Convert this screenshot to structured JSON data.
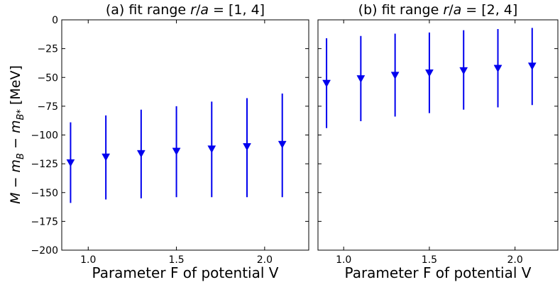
{
  "chart_data": [
    {
      "type": "scatter",
      "title": "(a) fit range r/a = [1, 4]",
      "xlabel": "Parameter F of potential V",
      "ylabel": "M − m_B − m_B* [MeV]",
      "xlim": [
        0.85,
        2.25
      ],
      "ylim": [
        -200,
        0
      ],
      "xticks": [
        1.0,
        1.5,
        2.0
      ],
      "xtick_labels": [
        "1.0",
        "1.5",
        "2.0"
      ],
      "yticks": [
        0,
        -25,
        -50,
        -75,
        -100,
        -125,
        -150,
        -175,
        -200
      ],
      "ytick_labels": [
        "0",
        "−25",
        "−50",
        "−75",
        "−100",
        "−125",
        "−150",
        "−175",
        "−200"
      ],
      "marker": "triangle-down",
      "color": "#0000ee",
      "points": [
        {
          "x": 0.9,
          "y": -124,
          "ylow": -159,
          "yhigh": -89
        },
        {
          "x": 1.1,
          "y": -119,
          "ylow": -156,
          "yhigh": -83
        },
        {
          "x": 1.3,
          "y": -116,
          "ylow": -155,
          "yhigh": -78
        },
        {
          "x": 1.5,
          "y": -114,
          "ylow": -154,
          "yhigh": -75
        },
        {
          "x": 1.7,
          "y": -112,
          "ylow": -154,
          "yhigh": -71
        },
        {
          "x": 1.9,
          "y": -110,
          "ylow": -154,
          "yhigh": -68
        },
        {
          "x": 2.1,
          "y": -108,
          "ylow": -154,
          "yhigh": -64
        }
      ]
    },
    {
      "type": "scatter",
      "title": "(b) fit range r/a = [2, 4]",
      "xlabel": "Parameter F of potential V",
      "xlim": [
        0.85,
        2.25
      ],
      "ylim": [
        -200,
        0
      ],
      "xticks": [
        1.0,
        1.5,
        2.0
      ],
      "xtick_labels": [
        "1.0",
        "1.5",
        "2.0"
      ],
      "marker": "triangle-down",
      "color": "#0000ee",
      "points": [
        {
          "x": 0.9,
          "y": -55,
          "ylow": -94,
          "yhigh": -16
        },
        {
          "x": 1.1,
          "y": -51,
          "ylow": -88,
          "yhigh": -14
        },
        {
          "x": 1.3,
          "y": -48,
          "ylow": -84,
          "yhigh": -12
        },
        {
          "x": 1.5,
          "y": -46,
          "ylow": -81,
          "yhigh": -11
        },
        {
          "x": 1.7,
          "y": -44,
          "ylow": -78,
          "yhigh": -9
        },
        {
          "x": 1.9,
          "y": -42,
          "ylow": -76,
          "yhigh": -8
        },
        {
          "x": 2.1,
          "y": -40,
          "ylow": -74,
          "yhigh": -7
        }
      ]
    }
  ]
}
